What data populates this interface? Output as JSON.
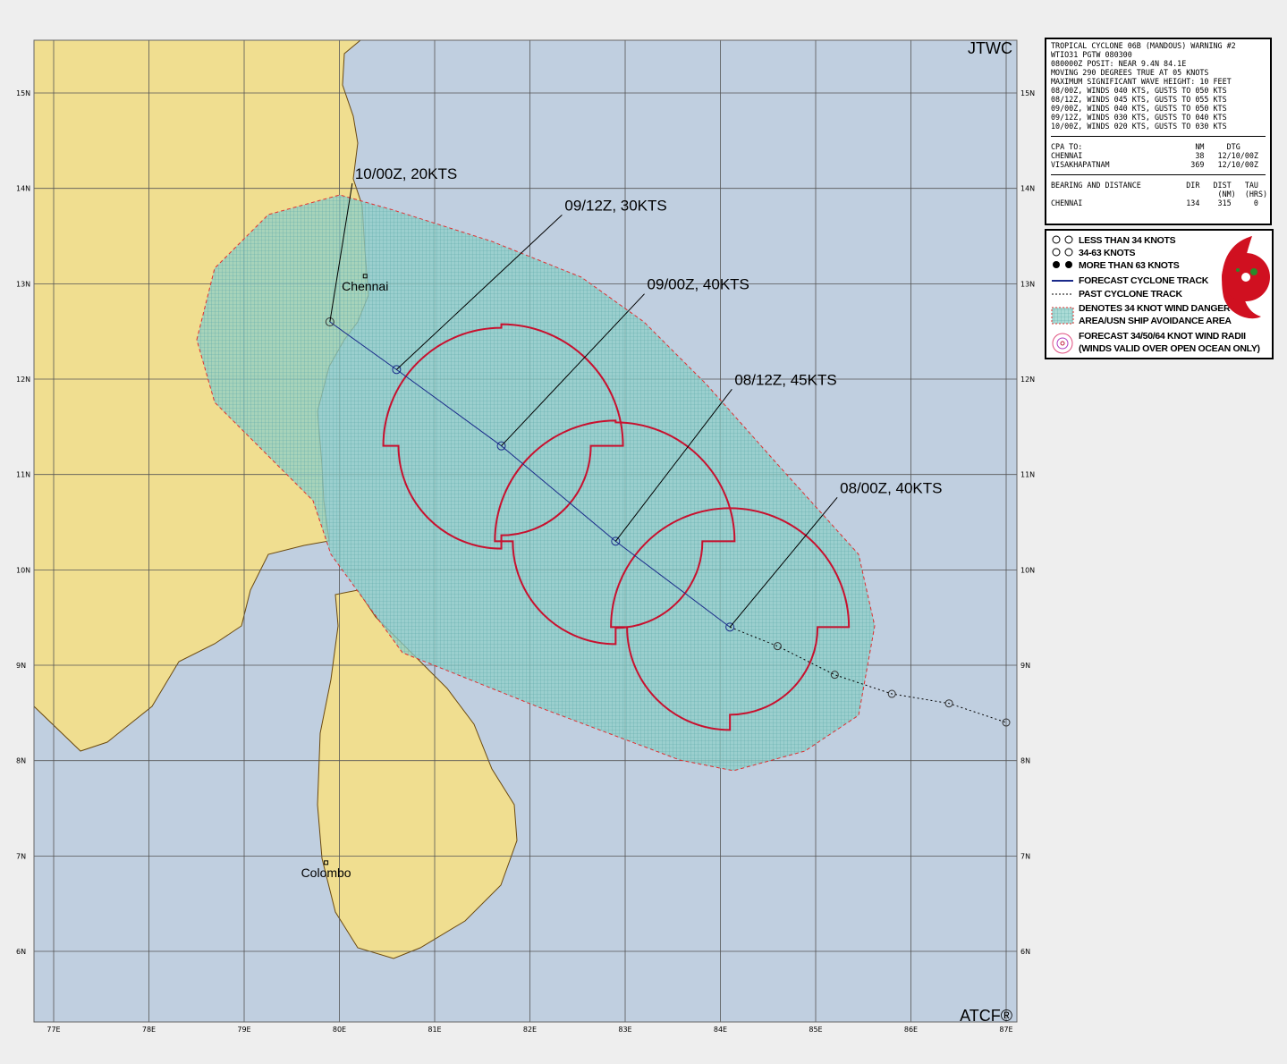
{
  "map": {
    "corner_top": "JTWC",
    "corner_bottom": "ATCF®",
    "lon_ticks": [
      "77E",
      "78E",
      "79E",
      "80E",
      "81E",
      "82E",
      "83E",
      "84E",
      "85E",
      "86E",
      "87E"
    ],
    "lat_ticks": [
      "15N",
      "14N",
      "13N",
      "12N",
      "11N",
      "10N",
      "9N",
      "8N",
      "7N",
      "6N"
    ],
    "colors": {
      "land": "#f0de90",
      "ocean": "#c0cfe0",
      "danger": "#7fc8c4",
      "radii": "#c8102e",
      "track": "#1a2a8a"
    },
    "cities": [
      {
        "name": "Chennai",
        "lon": 80.27,
        "lat": 13.08
      },
      {
        "name": "Colombo",
        "lon": 79.86,
        "lat": 6.93
      }
    ],
    "forecast_track": [
      {
        "label": "08/00Z,  40KTS",
        "lon": 84.1,
        "lat": 9.4
      },
      {
        "label": "08/12Z,  45KTS",
        "lon": 82.9,
        "lat": 10.3
      },
      {
        "label": "09/00Z,  40KTS",
        "lon": 81.7,
        "lat": 11.3
      },
      {
        "label": "09/12Z,  30KTS",
        "lon": 80.6,
        "lat": 12.1
      },
      {
        "label": "10/00Z,  20KTS",
        "lon": 79.9,
        "lat": 12.6
      }
    ],
    "past_track": [
      {
        "lon": 84.6,
        "lat": 9.2
      },
      {
        "lon": 85.2,
        "lat": 8.9
      },
      {
        "lon": 85.8,
        "lat": 8.7
      },
      {
        "lon": 86.4,
        "lat": 8.6
      },
      {
        "lon": 87.0,
        "lat": 8.4
      }
    ]
  },
  "info": {
    "header": [
      "TROPICAL CYCLONE 06B (MANDOUS) WARNING #2",
      "WTIO31 PGTW 080300",
      "080000Z POSIT: NEAR 9.4N 84.1E",
      "MOVING 290 DEGREES TRUE AT 05 KNOTS",
      "MAXIMUM SIGNIFICANT WAVE HEIGHT: 10 FEET",
      "08/00Z, WINDS 040 KTS, GUSTS TO 050 KTS",
      "08/12Z, WINDS 045 KTS, GUSTS TO 055 KTS",
      "09/00Z, WINDS 040 KTS, GUSTS TO 050 KTS",
      "09/12Z, WINDS 030 KTS, GUSTS TO 040 KTS",
      "10/00Z, WINDS 020 KTS, GUSTS TO 030 KTS"
    ],
    "cpa": [
      "CPA TO:                         NM     DTG",
      "CHENNAI                         38   12/10/00Z",
      "VISAKHAPATNAM                  369   12/10/00Z"
    ],
    "bearing": [
      "BEARING AND DISTANCE          DIR   DIST   TAU",
      "                                     (NM)  (HRS)",
      "CHENNAI                       134    315     0"
    ]
  },
  "legend": {
    "items": [
      "LESS THAN 34 KNOTS",
      "34-63 KNOTS",
      "MORE THAN 63 KNOTS",
      "FORECAST CYCLONE TRACK",
      "PAST CYCLONE TRACK",
      "DENOTES 34 KNOT WIND DANGER",
      "AREA/USN SHIP AVOIDANCE AREA",
      "FORECAST 34/50/64 KNOT WIND RADII",
      "(WINDS VALID OVER OPEN OCEAN ONLY)"
    ]
  }
}
